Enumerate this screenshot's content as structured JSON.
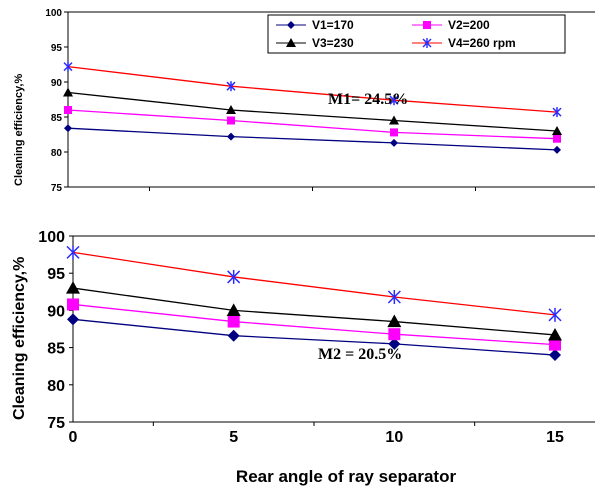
{
  "chart_data": [
    {
      "type": "line",
      "ylabel": "Cleaning efficiency,%",
      "xlabel": "",
      "ylim": [
        75,
        100
      ],
      "yticks": [
        "75",
        "80",
        "85",
        "90",
        "95",
        "100"
      ],
      "x": [
        0,
        5,
        10,
        15
      ],
      "annotation": "M1= 24.5%",
      "grid": "horizontal line at top",
      "legend_placement": "top-right",
      "series": [
        {
          "name": "V1=170",
          "values": [
            83.4,
            82.2,
            81.3,
            80.3
          ],
          "color": "#000080",
          "marker": "diamond"
        },
        {
          "name": "V2=200",
          "values": [
            86.0,
            84.5,
            82.8,
            81.9
          ],
          "color": "#ff00ff",
          "marker": "square"
        },
        {
          "name": "V3=230",
          "values": [
            88.5,
            86.0,
            84.5,
            83.0
          ],
          "color": "#000000",
          "marker": "triangle"
        },
        {
          "name": "V4=260 rpm",
          "values": [
            92.2,
            89.4,
            87.4,
            85.7
          ],
          "color": "#ff0000",
          "marker": "asterisk"
        }
      ]
    },
    {
      "type": "line",
      "ylabel": "Cleaning efficiency,%",
      "xlabel": "Rear angle of ray separator",
      "ylim": [
        75,
        100
      ],
      "yticks": [
        "75",
        "80",
        "85",
        "90",
        "95",
        "100"
      ],
      "xticks": [
        "0",
        "5",
        "10",
        "15"
      ],
      "x": [
        0,
        5,
        10,
        15
      ],
      "annotation": "M2 = 20.5%",
      "grid": "horizontal line at top",
      "series": [
        {
          "name": "V1=170",
          "values": [
            88.8,
            86.6,
            85.5,
            84.0
          ],
          "color": "#000080",
          "marker": "diamond"
        },
        {
          "name": "V2=200",
          "values": [
            90.8,
            88.5,
            86.8,
            85.4
          ],
          "color": "#ff00ff",
          "marker": "square"
        },
        {
          "name": "V3=230",
          "values": [
            93.0,
            90.0,
            88.5,
            86.7
          ],
          "color": "#000000",
          "marker": "triangle"
        },
        {
          "name": "V4=260 rpm",
          "values": [
            97.8,
            94.5,
            91.8,
            89.4
          ],
          "color": "#ff0000",
          "marker": "asterisk"
        }
      ]
    }
  ]
}
